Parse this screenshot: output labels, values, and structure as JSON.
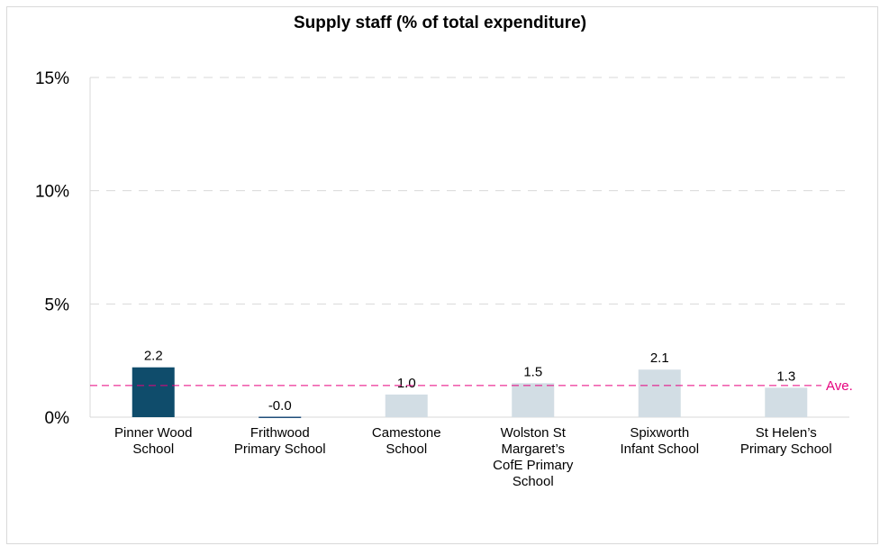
{
  "chart_data": {
    "type": "bar",
    "title": "Supply staff (% of total expenditure)",
    "xlabel": "",
    "ylabel": "",
    "ylim": [
      0,
      15
    ],
    "yticks": [
      0,
      5,
      10,
      15
    ],
    "ytick_labels": [
      "0%",
      "5%",
      "10%",
      "15%"
    ],
    "categories": [
      "Pinner Wood School",
      "Frithwood Primary School",
      "Camestone School",
      "Wolston St Margaret’s CofE Primary School",
      "Spixworth Infant School",
      "St Helen’s Primary School"
    ],
    "category_lines": [
      [
        "Pinner Wood",
        "School"
      ],
      [
        "Frithwood",
        "Primary School"
      ],
      [
        "Camestone",
        "School"
      ],
      [
        "Wolston St",
        "Margaret’s",
        "CofE Primary",
        "School"
      ],
      [
        "Spixworth",
        "Infant School"
      ],
      [
        "St Helen’s",
        "Primary School"
      ]
    ],
    "values": [
      2.2,
      -0.02,
      1.0,
      1.5,
      2.1,
      1.3
    ],
    "data_labels": [
      "2.2",
      "-0.0",
      "1.0",
      "1.5",
      "2.1",
      "1.3"
    ],
    "highlight_index": 0,
    "colors": {
      "highlight": "#0f4c6b",
      "negative": "#1f4e79",
      "default": "#d2dde4",
      "average_line": "#e6007e",
      "grid": "#d9d9d9"
    },
    "average": {
      "value": 1.4,
      "label": "Ave."
    },
    "grid": true,
    "legend": "none"
  }
}
